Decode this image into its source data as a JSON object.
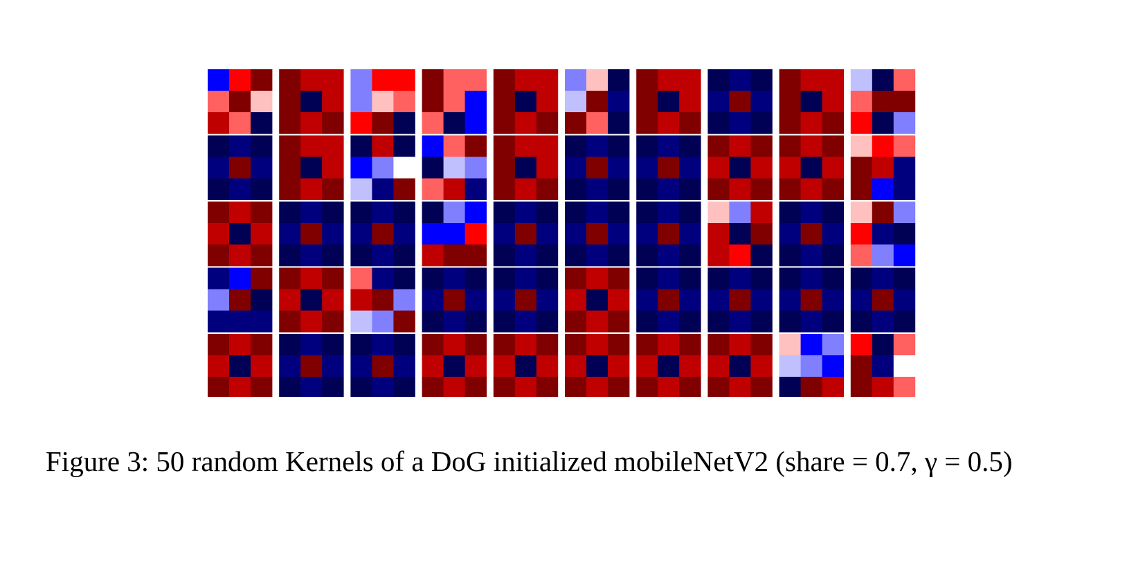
{
  "figure": {
    "caption": "Figure 3: 50 random Kernels of a DoG initialized mobileNetV2 (share = 0.7, γ = 0.5)",
    "rows": 5,
    "cols": 10,
    "kernel_size": 3,
    "colors": {
      "background": "#ffffff",
      "palette_note": "bwr",
      "a": "#000055",
      "b": "#00007f",
      "B": "#0000ff",
      "L": "#8080ff",
      "P": "#c0c0ff",
      "w": "#ffffff",
      "r": "#ffc0c0",
      "s": "#ff6060",
      "R": "#ff0000",
      "e": "#c00000",
      "d": "#800000"
    },
    "kernels": [
      [
        "BRd",
        "sdr",
        "esa"
      ],
      [
        "dee",
        "dae",
        "ded"
      ],
      [
        "LRR",
        "Lrs",
        "Rda"
      ],
      [
        "dss",
        "dsB",
        "saB"
      ],
      [
        "dee",
        "dae",
        "ded"
      ],
      [
        "Lra",
        "Pdb",
        "dsa"
      ],
      [
        "dee",
        "dae",
        "ded"
      ],
      [
        "aba",
        "bdb",
        "aba"
      ],
      [
        "dee",
        "dae",
        "ded"
      ],
      [
        "Pas",
        "sdd",
        "RaL"
      ],
      [
        "aba",
        "bdb",
        "aba"
      ],
      [
        "dee",
        "dae",
        "ded"
      ],
      [
        "aea",
        "BLw",
        "Pbd"
      ],
      [
        "Bsd",
        "aPL",
        "seb"
      ],
      [
        "dee",
        "dae",
        "ded"
      ],
      [
        "aba",
        "bdb",
        "aba"
      ],
      [
        "aba",
        "bdb",
        "aba"
      ],
      [
        "ded",
        "eae",
        "ded"
      ],
      [
        "ded",
        "eae",
        "ded"
      ],
      [
        "rRs",
        "deb",
        "dBb"
      ],
      [
        "ded",
        "eae",
        "ded"
      ],
      [
        "aba",
        "bdb",
        "aba"
      ],
      [
        "aba",
        "bdb",
        "aba"
      ],
      [
        "aLB",
        "BBR",
        "edd"
      ],
      [
        "aba",
        "bdb",
        "aba"
      ],
      [
        "aba",
        "bdb",
        "aba"
      ],
      [
        "aba",
        "bdb",
        "aba"
      ],
      [
        "rLe",
        "ead",
        "eRa"
      ],
      [
        "aba",
        "bdb",
        "aba"
      ],
      [
        "rdL",
        "Rba",
        "sLB"
      ],
      [
        "bBd",
        "Lda",
        "bbb"
      ],
      [
        "ded",
        "eae",
        "ded"
      ],
      [
        "sba",
        "edL",
        "PLd"
      ],
      [
        "aba",
        "bdb",
        "aba"
      ],
      [
        "aba",
        "bdb",
        "aba"
      ],
      [
        "ded",
        "eae",
        "ded"
      ],
      [
        "aba",
        "bdb",
        "aba"
      ],
      [
        "aba",
        "bdb",
        "aba"
      ],
      [
        "aba",
        "bdb",
        "aba"
      ],
      [
        "aba",
        "bdb",
        "aba"
      ],
      [
        "ded",
        "eae",
        "ded"
      ],
      [
        "aba",
        "bdb",
        "aba"
      ],
      [
        "aba",
        "bdb",
        "aba"
      ],
      [
        "ded",
        "eae",
        "ded"
      ],
      [
        "ded",
        "eae",
        "ded"
      ],
      [
        "ded",
        "eae",
        "ded"
      ],
      [
        "ded",
        "eae",
        "ded"
      ],
      [
        "ded",
        "eae",
        "ded"
      ],
      [
        "rBL",
        "PLB",
        "ade"
      ],
      [
        "Ras",
        "dbw",
        "des"
      ]
    ]
  }
}
